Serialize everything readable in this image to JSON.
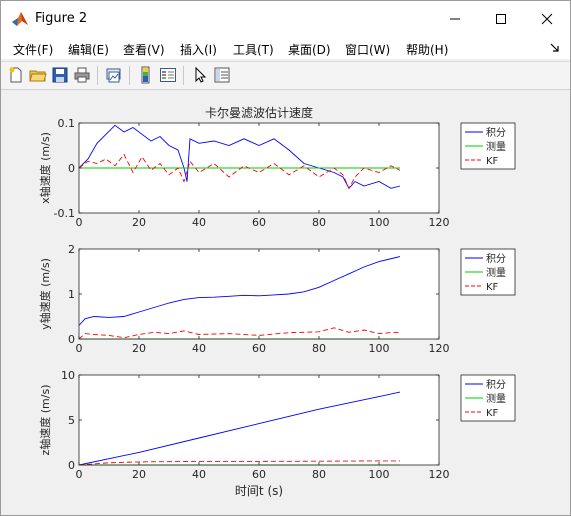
{
  "window": {
    "title": "Figure 2",
    "icon": "matlab-icon"
  },
  "menu": [
    {
      "label": "文件(F)"
    },
    {
      "label": "编辑(E)"
    },
    {
      "label": "查看(V)"
    },
    {
      "label": "插入(I)"
    },
    {
      "label": "工具(T)"
    },
    {
      "label": "桌面(D)"
    },
    {
      "label": "窗口(W)"
    },
    {
      "label": "帮助(H)"
    }
  ],
  "toolbar_icons": [
    "new-figure-icon",
    "open-file-icon",
    "save-icon",
    "print-icon",
    "link-plot-icon",
    "colorbar-icon",
    "legend-icon",
    "pointer-icon",
    "property-editor-icon"
  ],
  "colors": {
    "series_integral": "#0000ff",
    "series_measured": "#00cc00",
    "series_kf": "#ff0000"
  },
  "chart_data": [
    {
      "type": "line",
      "title": "卡尔曼滤波估计速度",
      "xlabel": "",
      "ylabel": "x轴速度 (m/s)",
      "xlim": [
        0,
        120
      ],
      "ylim": [
        -0.1,
        0.1
      ],
      "xticks": [
        "0",
        "20",
        "40",
        "60",
        "80",
        "100",
        "120"
      ],
      "yticks": [
        "-0.1",
        "0",
        "0.1"
      ],
      "legend_position": "outside-right",
      "legend": [
        "积分",
        "测量",
        "KF"
      ],
      "series": [
        {
          "name": "积分",
          "style": "solid",
          "color": "#0000ff",
          "x": [
            0,
            3,
            6,
            9,
            12,
            15,
            18,
            21,
            24,
            27,
            30,
            33,
            35,
            36,
            37,
            40,
            45,
            50,
            55,
            60,
            65,
            70,
            75,
            80,
            85,
            88,
            90,
            92,
            95,
            100,
            104,
            107
          ],
          "y": [
            0.0,
            0.02,
            0.055,
            0.075,
            0.095,
            0.08,
            0.09,
            0.075,
            0.06,
            0.07,
            0.05,
            0.04,
            0.0,
            -0.03,
            0.065,
            0.055,
            0.06,
            0.05,
            0.065,
            0.05,
            0.065,
            0.04,
            0.01,
            0.0,
            -0.01,
            -0.02,
            -0.045,
            -0.03,
            -0.04,
            -0.03,
            -0.045,
            -0.04
          ]
        },
        {
          "name": "测量",
          "style": "solid",
          "color": "#00cc00",
          "x": [
            0,
            107
          ],
          "y": [
            0.0,
            0.0
          ]
        },
        {
          "name": "KF",
          "style": "dashed",
          "color": "#ff0000",
          "x": [
            0,
            3,
            6,
            9,
            12,
            15,
            18,
            21,
            24,
            27,
            30,
            33,
            35,
            37,
            40,
            45,
            50,
            55,
            60,
            65,
            70,
            75,
            80,
            85,
            88,
            90,
            92,
            95,
            100,
            104,
            107
          ],
          "y": [
            0.0,
            0.015,
            0.01,
            0.02,
            0.005,
            0.03,
            -0.01,
            0.025,
            -0.005,
            0.01,
            -0.015,
            0.0,
            -0.03,
            0.015,
            -0.01,
            0.01,
            -0.02,
            0.005,
            -0.01,
            0.01,
            -0.015,
            0.005,
            -0.02,
            0.0,
            -0.015,
            -0.045,
            -0.02,
            0.0,
            -0.01,
            0.005,
            -0.005
          ]
        }
      ]
    },
    {
      "type": "line",
      "title": "",
      "xlabel": "",
      "ylabel": "y轴速度 (m/s)",
      "xlim": [
        0,
        120
      ],
      "ylim": [
        0,
        2
      ],
      "xticks": [
        "0",
        "20",
        "40",
        "60",
        "80",
        "100",
        "120"
      ],
      "yticks": [
        "0",
        "1",
        "2"
      ],
      "legend_position": "outside-right",
      "legend": [
        "积分",
        "测量",
        "KF"
      ],
      "series": [
        {
          "name": "积分",
          "style": "solid",
          "color": "#0000ff",
          "x": [
            0,
            2,
            5,
            10,
            15,
            20,
            25,
            30,
            35,
            40,
            45,
            50,
            55,
            60,
            65,
            70,
            75,
            80,
            85,
            90,
            95,
            100,
            105,
            107
          ],
          "y": [
            0.3,
            0.45,
            0.5,
            0.48,
            0.5,
            0.6,
            0.7,
            0.8,
            0.88,
            0.92,
            0.93,
            0.95,
            0.97,
            0.96,
            0.98,
            1.0,
            1.05,
            1.15,
            1.3,
            1.45,
            1.6,
            1.72,
            1.8,
            1.83
          ]
        },
        {
          "name": "测量",
          "style": "solid",
          "color": "#00cc00",
          "x": [
            0,
            107
          ],
          "y": [
            0.0,
            0.0
          ]
        },
        {
          "name": "KF",
          "style": "dashed",
          "color": "#ff0000",
          "x": [
            0,
            2,
            5,
            10,
            15,
            20,
            25,
            30,
            35,
            40,
            50,
            60,
            70,
            80,
            85,
            90,
            95,
            100,
            105,
            107
          ],
          "y": [
            0.0,
            0.12,
            0.1,
            0.08,
            0.03,
            0.1,
            0.15,
            0.12,
            0.18,
            0.1,
            0.12,
            0.08,
            0.14,
            0.16,
            0.25,
            0.15,
            0.2,
            0.12,
            0.15,
            0.14
          ]
        }
      ]
    },
    {
      "type": "line",
      "title": "",
      "xlabel": "时间t (s)",
      "ylabel": "z轴速度 (m/s)",
      "xlim": [
        0,
        120
      ],
      "ylim": [
        0,
        10
      ],
      "xticks": [
        "0",
        "20",
        "40",
        "60",
        "80",
        "100",
        "120"
      ],
      "yticks": [
        "0",
        "5",
        "10"
      ],
      "legend_position": "outside-right",
      "legend": [
        "积分",
        "测量",
        "KF"
      ],
      "series": [
        {
          "name": "积分",
          "style": "solid",
          "color": "#0000ff",
          "x": [
            0,
            20,
            40,
            60,
            80,
            100,
            107
          ],
          "y": [
            0.0,
            1.4,
            3.0,
            4.6,
            6.2,
            7.6,
            8.1
          ]
        },
        {
          "name": "测量",
          "style": "solid",
          "color": "#00cc00",
          "x": [
            0,
            107
          ],
          "y": [
            0.0,
            0.0
          ]
        },
        {
          "name": "KF",
          "style": "dashed",
          "color": "#ff0000",
          "x": [
            0,
            10,
            20,
            40,
            60,
            80,
            100,
            107
          ],
          "y": [
            0.0,
            0.25,
            0.35,
            0.4,
            0.4,
            0.42,
            0.45,
            0.45
          ]
        }
      ]
    }
  ]
}
